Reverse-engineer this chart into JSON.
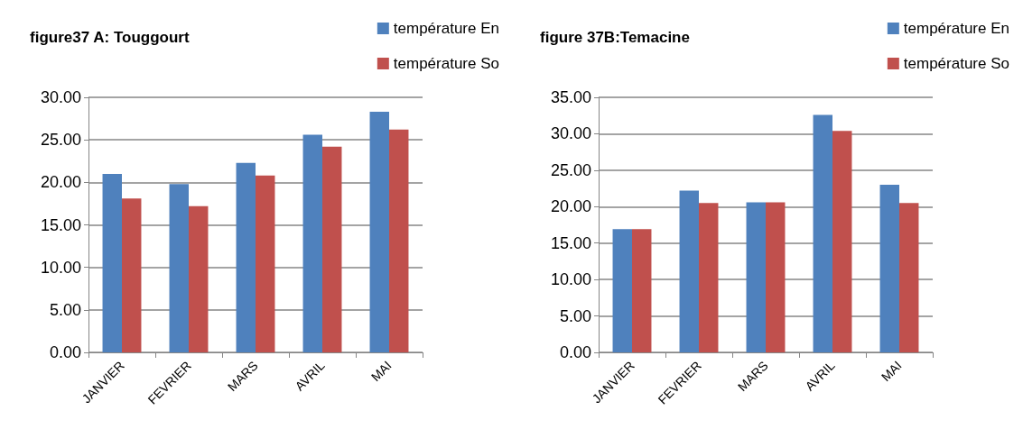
{
  "chart_data": [
    {
      "type": "bar",
      "title": "figure37 A: Touggourt",
      "categories": [
        "JANVIER",
        "FEVRIER",
        "MARS",
        "AVRIL",
        "MAI"
      ],
      "series": [
        {
          "name": "température En",
          "color": "#4f81bd",
          "values": [
            21.0,
            19.8,
            22.3,
            25.6,
            28.3
          ]
        },
        {
          "name": "température So",
          "color": "#c0504d",
          "values": [
            18.1,
            17.2,
            20.8,
            24.2,
            26.2
          ]
        }
      ],
      "ylim": [
        0,
        30
      ],
      "yticks": [
        {
          "value": 0,
          "label": "0.00"
        },
        {
          "value": 5,
          "label": "5.00"
        },
        {
          "value": 10,
          "label": "10.00"
        },
        {
          "value": 15,
          "label": "15.00"
        },
        {
          "value": 20,
          "label": "20.00"
        },
        {
          "value": 25,
          "label": "25.00"
        },
        {
          "value": 30,
          "label": "30.00"
        }
      ],
      "grid": "y",
      "legend": "top right"
    },
    {
      "type": "bar",
      "title": "figure 37B:Temacine",
      "categories": [
        "JANVIER",
        "FEVRIER",
        "MARS",
        "AVRIL",
        "MAI"
      ],
      "series": [
        {
          "name": "température En",
          "color": "#4f81bd",
          "values": [
            16.9,
            22.2,
            20.6,
            32.6,
            23.0
          ]
        },
        {
          "name": "température So",
          "color": "#c0504d",
          "values": [
            16.9,
            20.5,
            20.6,
            30.4,
            20.5
          ]
        }
      ],
      "ylim": [
        0,
        35
      ],
      "yticks": [
        {
          "value": 0,
          "label": "0.00"
        },
        {
          "value": 5,
          "label": "5.00"
        },
        {
          "value": 10,
          "label": "10.00"
        },
        {
          "value": 15,
          "label": "15.00"
        },
        {
          "value": 20,
          "label": "20.00"
        },
        {
          "value": 25,
          "label": "25.00"
        },
        {
          "value": 30,
          "label": "30.00"
        },
        {
          "value": 35,
          "label": "35.00"
        }
      ],
      "grid": "y",
      "legend": "top right"
    }
  ]
}
